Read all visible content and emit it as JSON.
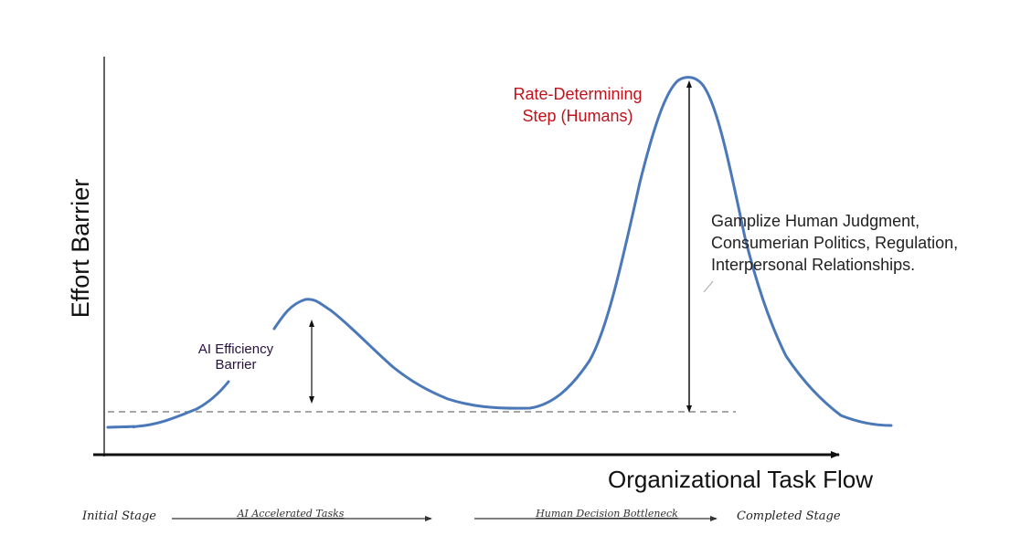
{
  "axes": {
    "y_label": "Effort Barrier",
    "x_label": "Organizational Task Flow"
  },
  "annotations": {
    "ai_barrier": [
      "AI Efficiency",
      "Barrier"
    ],
    "rate_step": [
      "Rate-Determining",
      "Step (Humans)"
    ],
    "human_factors": [
      "Gamplize Human Judgment,",
      "Consumerian Politics, Regulation,",
      "Interpersonal Relationships."
    ]
  },
  "stages": {
    "initial": "Initial Stage",
    "ai_tasks": "AI Accelerated Tasks",
    "bottleneck": "Human Decision Bottleneck",
    "completed": "Completed Stage"
  },
  "colors": {
    "curve": "#4a78b8",
    "axis": "#111111",
    "rate_label": "#c0121b",
    "ai_label": "#2a1040",
    "baseline": "#8a8a8a"
  }
}
